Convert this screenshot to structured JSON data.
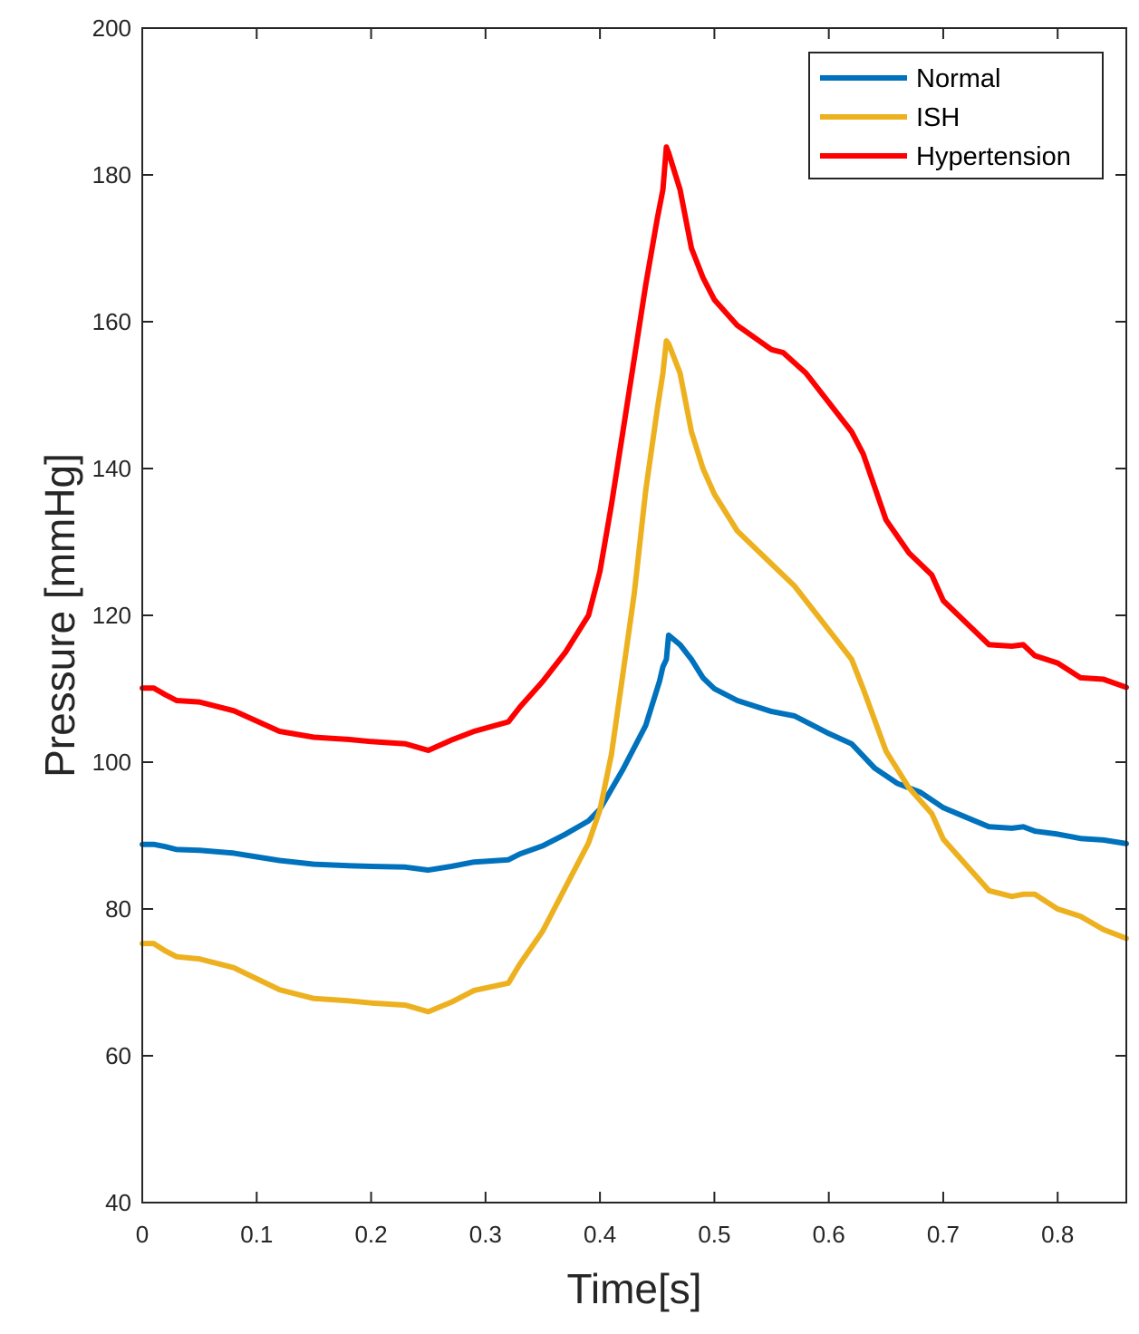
{
  "chart_data": {
    "type": "line",
    "title": "",
    "xlabel": "Time[s]",
    "ylabel": "Pressure [mmHg]",
    "xlim": [
      0,
      0.86
    ],
    "ylim": [
      40,
      200
    ],
    "x_ticks": [
      "0",
      "0.1",
      "0.2",
      "0.3",
      "0.4",
      "0.5",
      "0.6",
      "0.7",
      "0.8"
    ],
    "y_ticks": [
      "40",
      "60",
      "80",
      "100",
      "120",
      "140",
      "160",
      "180",
      "200"
    ],
    "grid": false,
    "legend_position": "top-right",
    "series": [
      {
        "name": "Normal",
        "color": "#0072BD",
        "x": [
          0,
          0.01,
          0.02,
          0.03,
          0.05,
          0.08,
          0.1,
          0.12,
          0.15,
          0.18,
          0.2,
          0.23,
          0.25,
          0.27,
          0.29,
          0.32,
          0.33,
          0.35,
          0.37,
          0.39,
          0.4,
          0.42,
          0.44,
          0.452,
          0.455,
          0.458,
          0.46,
          0.47,
          0.48,
          0.49,
          0.5,
          0.52,
          0.55,
          0.57,
          0.6,
          0.62,
          0.64,
          0.66,
          0.68,
          0.7,
          0.72,
          0.74,
          0.76,
          0.77,
          0.78,
          0.8,
          0.82,
          0.84,
          0.86
        ],
        "y": [
          88.8,
          88.8,
          88.5,
          88.1,
          88.0,
          87.6,
          87.1,
          86.6,
          86.1,
          85.9,
          85.8,
          85.7,
          85.3,
          85.8,
          86.4,
          86.7,
          87.5,
          88.6,
          90.2,
          92.0,
          93.6,
          99.0,
          105.0,
          111.0,
          113.0,
          114.0,
          117.3,
          116.0,
          114.0,
          111.5,
          110.0,
          108.4,
          106.9,
          106.3,
          103.9,
          102.5,
          99.2,
          97.1,
          95.9,
          93.8,
          92.5,
          91.2,
          91.0,
          91.2,
          90.6,
          90.2,
          89.6,
          89.4,
          88.9
        ]
      },
      {
        "name": "ISH",
        "color": "#EDB120",
        "x": [
          0,
          0.01,
          0.02,
          0.03,
          0.05,
          0.08,
          0.1,
          0.12,
          0.15,
          0.18,
          0.2,
          0.23,
          0.25,
          0.27,
          0.29,
          0.32,
          0.33,
          0.35,
          0.37,
          0.39,
          0.4,
          0.41,
          0.42,
          0.43,
          0.44,
          0.45,
          0.455,
          0.458,
          0.46,
          0.47,
          0.48,
          0.49,
          0.5,
          0.52,
          0.55,
          0.57,
          0.6,
          0.62,
          0.63,
          0.65,
          0.67,
          0.69,
          0.7,
          0.72,
          0.74,
          0.76,
          0.77,
          0.78,
          0.8,
          0.82,
          0.84,
          0.86
        ],
        "y": [
          75.3,
          75.3,
          74.3,
          73.5,
          73.2,
          72.0,
          70.5,
          69.0,
          67.8,
          67.5,
          67.2,
          66.9,
          66.0,
          67.3,
          68.9,
          69.9,
          72.5,
          77.0,
          83.0,
          89.0,
          93.5,
          101.0,
          112.0,
          123.0,
          137.0,
          148.0,
          153.0,
          157.4,
          157.0,
          153.0,
          145.0,
          140.0,
          136.5,
          131.5,
          127.0,
          124.0,
          118.0,
          114.0,
          110.0,
          101.5,
          96.5,
          93.0,
          89.5,
          86.0,
          82.5,
          81.7,
          82.0,
          82.0,
          80.0,
          79.0,
          77.2,
          76.0
        ]
      },
      {
        "name": "Hypertension",
        "color": "#FF0000",
        "x": [
          0,
          0.01,
          0.02,
          0.03,
          0.05,
          0.08,
          0.1,
          0.12,
          0.15,
          0.18,
          0.2,
          0.23,
          0.25,
          0.27,
          0.29,
          0.32,
          0.33,
          0.35,
          0.37,
          0.39,
          0.4,
          0.41,
          0.42,
          0.43,
          0.44,
          0.45,
          0.455,
          0.458,
          0.46,
          0.47,
          0.48,
          0.49,
          0.5,
          0.52,
          0.55,
          0.56,
          0.58,
          0.6,
          0.62,
          0.63,
          0.65,
          0.67,
          0.69,
          0.7,
          0.72,
          0.74,
          0.76,
          0.77,
          0.78,
          0.8,
          0.82,
          0.84,
          0.86
        ],
        "y": [
          110.1,
          110.1,
          109.2,
          108.4,
          108.2,
          107.0,
          105.6,
          104.2,
          103.4,
          103.1,
          102.8,
          102.5,
          101.6,
          103.0,
          104.2,
          105.5,
          107.5,
          111.0,
          115.0,
          120.0,
          126.0,
          135.0,
          145.0,
          155.0,
          165.0,
          174.0,
          178.0,
          183.8,
          183.0,
          178.0,
          170.0,
          166.0,
          163.0,
          159.5,
          156.2,
          155.8,
          153.0,
          149.0,
          145.0,
          142.0,
          133.0,
          128.5,
          125.5,
          122.0,
          119.0,
          116.0,
          115.8,
          116.0,
          114.5,
          113.5,
          111.5,
          111.3,
          110.2
        ]
      }
    ]
  }
}
